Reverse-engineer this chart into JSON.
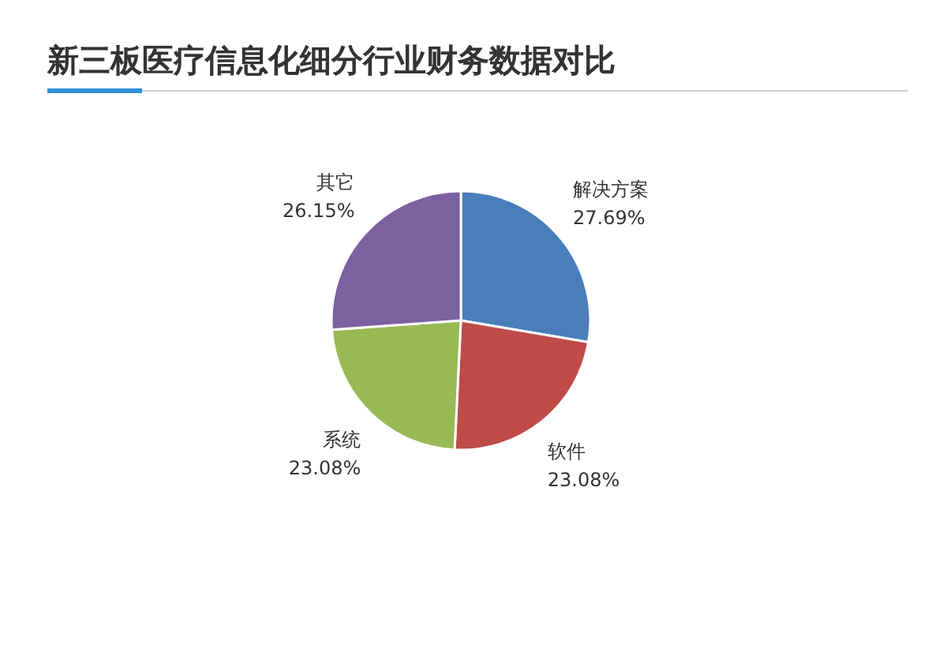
{
  "chart_data": {
    "type": "pie",
    "title": "新三板医疗信息化细分行业财务数据对比",
    "categories": [
      "解决方案",
      "软件",
      "系统",
      "其它"
    ],
    "values": [
      27.69,
      23.08,
      23.08,
      26.15
    ],
    "value_labels": [
      "27.69%",
      "23.08%",
      "23.08%",
      "26.15%"
    ],
    "colors": [
      "#4a7ebb",
      "#be4b48",
      "#98b954",
      "#7d60a0"
    ],
    "legend": false
  }
}
